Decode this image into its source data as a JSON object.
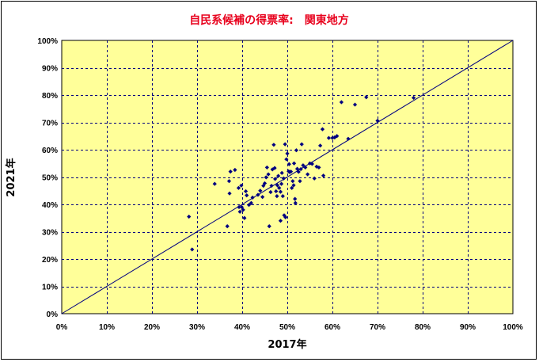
{
  "chart_data": {
    "type": "scatter",
    "title": "自民系候補の得票率:　関東地方",
    "xlabel": "2017年",
    "ylabel": "2021年",
    "xlim": [
      0,
      100
    ],
    "ylim": [
      0,
      100
    ],
    "x_ticks": [
      "0%",
      "10%",
      "20%",
      "30%",
      "40%",
      "50%",
      "60%",
      "70%",
      "80%",
      "90%",
      "100%"
    ],
    "y_ticks": [
      "0%",
      "10%",
      "20%",
      "30%",
      "40%",
      "50%",
      "60%",
      "70%",
      "80%",
      "90%",
      "100%"
    ],
    "grid": true,
    "reference_line": "y = x",
    "legend": "none",
    "colors": {
      "title": "#e8001c",
      "plot_background": "#ffff99",
      "points": "#000080",
      "grid": "#000080",
      "reference_line": "#000080"
    },
    "series": [
      {
        "points": [
          [
            28.2,
            35.5
          ],
          [
            28.9,
            23.5
          ],
          [
            33.9,
            47.5
          ],
          [
            36.7,
            32.0
          ],
          [
            37.2,
            44.0
          ],
          [
            37.1,
            48.5
          ],
          [
            37.4,
            52.0
          ],
          [
            38.4,
            52.6
          ],
          [
            39.2,
            46.0
          ],
          [
            39.3,
            39.0
          ],
          [
            39.5,
            37.3
          ],
          [
            39.8,
            46.9
          ],
          [
            39.9,
            39.0
          ],
          [
            40.2,
            38.0
          ],
          [
            40.5,
            35.0
          ],
          [
            40.8,
            44.8
          ],
          [
            41.0,
            43.3
          ],
          [
            41.5,
            39.8
          ],
          [
            42.0,
            40.5
          ],
          [
            42.3,
            42.5
          ],
          [
            43.5,
            43.5
          ],
          [
            44.0,
            45.0
          ],
          [
            44.5,
            42.7
          ],
          [
            44.7,
            46.8
          ],
          [
            45.0,
            47.7
          ],
          [
            45.3,
            49.9
          ],
          [
            45.5,
            53.5
          ],
          [
            45.8,
            51.0
          ],
          [
            46.0,
            32.0
          ],
          [
            46.3,
            44.5
          ],
          [
            46.5,
            46.8
          ],
          [
            46.7,
            52.8
          ],
          [
            47.0,
            61.8
          ],
          [
            47.2,
            53.3
          ],
          [
            47.3,
            49.3
          ],
          [
            47.5,
            44.8
          ],
          [
            47.7,
            43.0
          ],
          [
            47.8,
            47.0
          ],
          [
            48.0,
            50.4
          ],
          [
            48.2,
            46.0
          ],
          [
            48.5,
            44.6
          ],
          [
            48.5,
            34.0
          ],
          [
            48.7,
            47.5
          ],
          [
            48.8,
            51.5
          ],
          [
            49.0,
            43.0
          ],
          [
            49.2,
            49.5
          ],
          [
            49.3,
            36.0
          ],
          [
            49.5,
            62.0
          ],
          [
            49.6,
            35.3
          ],
          [
            49.8,
            56.5
          ],
          [
            50.0,
            58.6
          ],
          [
            50.3,
            52.1
          ],
          [
            50.4,
            54.7
          ],
          [
            50.5,
            51.8
          ],
          [
            50.8,
            52.0
          ],
          [
            51.0,
            46.0
          ],
          [
            51.2,
            48.5
          ],
          [
            51.4,
            47.0
          ],
          [
            51.5,
            55.0
          ],
          [
            51.7,
            42.0
          ],
          [
            51.8,
            40.5
          ],
          [
            52.0,
            59.8
          ],
          [
            52.2,
            53.0
          ],
          [
            52.5,
            51.9
          ],
          [
            52.8,
            48.5
          ],
          [
            53.0,
            52.9
          ],
          [
            53.2,
            62.0
          ],
          [
            53.5,
            54.3
          ],
          [
            54.0,
            53.5
          ],
          [
            54.5,
            51.0
          ],
          [
            55.0,
            55.0
          ],
          [
            55.5,
            54.8
          ],
          [
            56.0,
            49.5
          ],
          [
            56.5,
            53.8
          ],
          [
            57.0,
            53.5
          ],
          [
            57.3,
            61.5
          ],
          [
            57.8,
            67.5
          ],
          [
            58.0,
            50.5
          ],
          [
            59.2,
            64.3
          ],
          [
            60.0,
            64.3
          ],
          [
            60.5,
            64.5
          ],
          [
            61.0,
            65.0
          ],
          [
            62.0,
            77.4
          ],
          [
            63.5,
            64.0
          ],
          [
            65.0,
            76.5
          ],
          [
            67.5,
            79.2
          ],
          [
            70.0,
            70.6
          ],
          [
            78.0,
            79.0
          ]
        ]
      }
    ]
  }
}
